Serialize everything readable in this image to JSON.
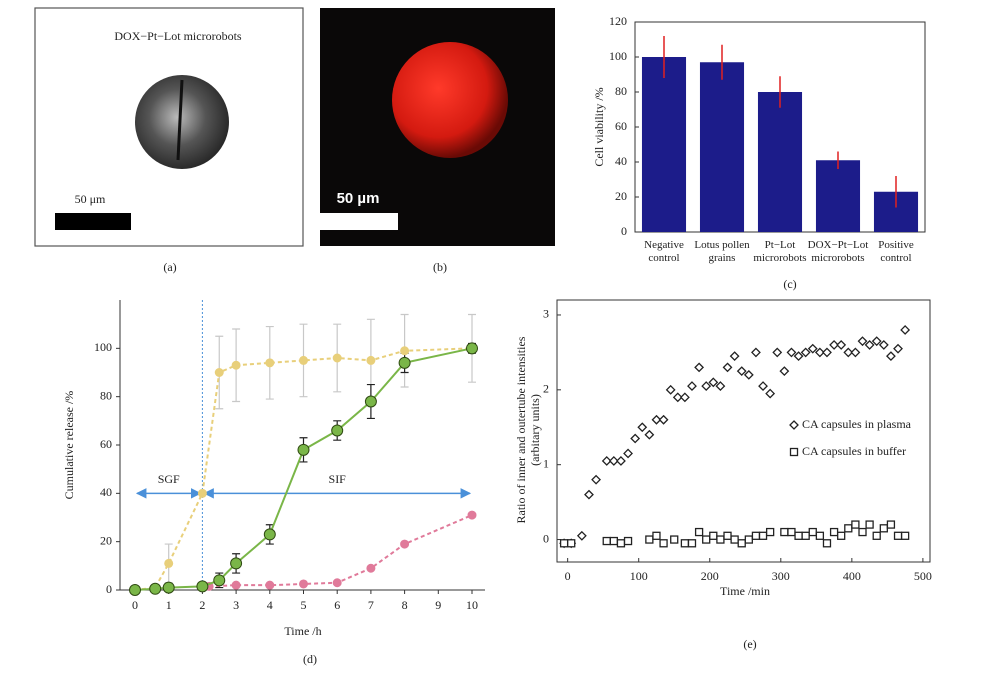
{
  "images": [
    {
      "caption": "DOX−Pt−Lot microrobots",
      "scale": "50 μm",
      "label": "(a)"
    },
    {
      "scale": "50 µm",
      "label": "(b)"
    }
  ],
  "chart_data": [
    {
      "type": "bar",
      "label": "(c)",
      "ylabel": "Cell viability /%",
      "categories": [
        [
          "Negative",
          "control"
        ],
        [
          "Lotus pollen",
          "grains"
        ],
        [
          "Pt−Lot",
          "microrobots"
        ],
        [
          "DOX−Pt−Lot",
          "microrobots"
        ],
        [
          "Positive",
          "control"
        ]
      ],
      "values": [
        100,
        97,
        80,
        41,
        23
      ],
      "errors": [
        12,
        10,
        9,
        5,
        9
      ],
      "color": "#1c1c8a",
      "error_color": "#e02020",
      "ylim": [
        0,
        120
      ],
      "yticks": [
        0,
        20,
        40,
        60,
        80,
        100,
        120
      ]
    },
    {
      "type": "line",
      "label": "(d)",
      "xlabel": "Time /h",
      "ylabel": "Cumulative release /%",
      "xlim": [
        0,
        10
      ],
      "xticks": [
        0,
        1,
        2,
        3,
        4,
        5,
        6,
        7,
        8,
        9,
        10
      ],
      "ylim": [
        0,
        120
      ],
      "yticks": [
        0,
        20,
        40,
        60,
        80,
        100
      ],
      "divider_x": 2,
      "annotations": [
        {
          "text": "SGF",
          "x": [
            0,
            2
          ],
          "y": 40
        },
        {
          "text": "SIF",
          "x": [
            2,
            10
          ],
          "y": 40
        }
      ],
      "series": [
        {
          "color": "#e8cf7a",
          "dashed": true,
          "error_color": "#c8c8c8",
          "x": [
            0,
            0.6,
            1,
            2,
            2.5,
            3,
            4,
            5,
            6,
            7,
            8,
            10
          ],
          "values": [
            0,
            1,
            11,
            40,
            90,
            93,
            94,
            95,
            96,
            95,
            99,
            100
          ],
          "errors": [
            null,
            null,
            8,
            null,
            15,
            15,
            15,
            15,
            14,
            17,
            15,
            14
          ]
        },
        {
          "color": "#e07a9a",
          "dashed": true,
          "error_color": "#c8c8c8",
          "x": [
            2.2,
            3,
            4,
            5,
            6,
            7,
            8,
            10
          ],
          "values": [
            1.5,
            2,
            2,
            2.5,
            3,
            9,
            19,
            31
          ],
          "errors": [
            null,
            null,
            null,
            null,
            null,
            null,
            null,
            null
          ]
        },
        {
          "color": "#7ab648",
          "dashed": false,
          "edgecolor": "#2f4a12",
          "error_color": "#222222",
          "x": [
            0,
            0.6,
            1,
            2,
            2.5,
            3,
            4,
            5,
            6,
            7,
            8,
            10
          ],
          "values": [
            0,
            0.5,
            1,
            1.5,
            4,
            11,
            23,
            58,
            66,
            78,
            94,
            100
          ],
          "errors": [
            null,
            null,
            1.5,
            null,
            3,
            4,
            4,
            5,
            4,
            7,
            4,
            2
          ]
        }
      ]
    },
    {
      "type": "scatter",
      "label": "(e)",
      "xlabel": "Time /min",
      "ylabel": [
        "Ratio of inner and outertube intensities",
        "(arbitary units)"
      ],
      "xlim": [
        -15,
        510
      ],
      "xticks": [
        0,
        100,
        200,
        300,
        400,
        500
      ],
      "ylim": [
        -0.3,
        3.2
      ],
      "yticks": [
        0,
        1,
        2,
        3
      ],
      "series": [
        {
          "name": "CA capsules in plasma",
          "marker": "diamond",
          "color": "#222222",
          "x": [
            -5,
            5,
            20,
            30,
            40,
            55,
            65,
            75,
            85,
            95,
            105,
            115,
            125,
            135,
            145,
            155,
            165,
            175,
            185,
            195,
            205,
            215,
            225,
            235,
            245,
            255,
            265,
            275,
            285,
            295,
            305,
            315,
            325,
            335,
            345,
            355,
            365,
            375,
            385,
            395,
            405,
            415,
            425,
            435,
            445,
            455,
            465,
            475
          ],
          "values": [
            -0.05,
            -0.05,
            0.05,
            0.6,
            0.8,
            1.05,
            1.05,
            1.05,
            1.15,
            1.35,
            1.5,
            1.4,
            1.6,
            1.6,
            2.0,
            1.9,
            1.9,
            2.05,
            2.3,
            2.05,
            2.1,
            2.05,
            2.3,
            2.45,
            2.25,
            2.2,
            2.5,
            2.05,
            1.95,
            2.5,
            2.25,
            2.5,
            2.45,
            2.5,
            2.55,
            2.5,
            2.5,
            2.6,
            2.6,
            2.5,
            2.5,
            2.65,
            2.6,
            2.65,
            2.6,
            2.45,
            2.55,
            2.8
          ]
        },
        {
          "name": "CA capsules in buffer",
          "marker": "square",
          "color": "#222222",
          "x": [
            -5,
            5,
            55,
            65,
            75,
            85,
            115,
            125,
            135,
            150,
            165,
            175,
            185,
            195,
            205,
            215,
            225,
            235,
            245,
            255,
            265,
            275,
            285,
            305,
            315,
            325,
            335,
            345,
            355,
            365,
            375,
            385,
            395,
            405,
            415,
            425,
            435,
            445,
            455,
            465,
            475
          ],
          "values": [
            -0.05,
            -0.05,
            -0.02,
            -0.02,
            -0.05,
            -0.02,
            0,
            0.05,
            -0.05,
            0,
            -0.05,
            -0.05,
            0.1,
            0,
            0.05,
            0,
            0.05,
            0,
            -0.05,
            0,
            0.05,
            0.05,
            0.1,
            0.1,
            0.1,
            0.05,
            0.05,
            0.1,
            0.05,
            -0.05,
            0.1,
            0.05,
            0.15,
            0.2,
            0.1,
            0.2,
            0.05,
            0.15,
            0.2,
            0.05,
            0.05
          ]
        }
      ]
    }
  ]
}
